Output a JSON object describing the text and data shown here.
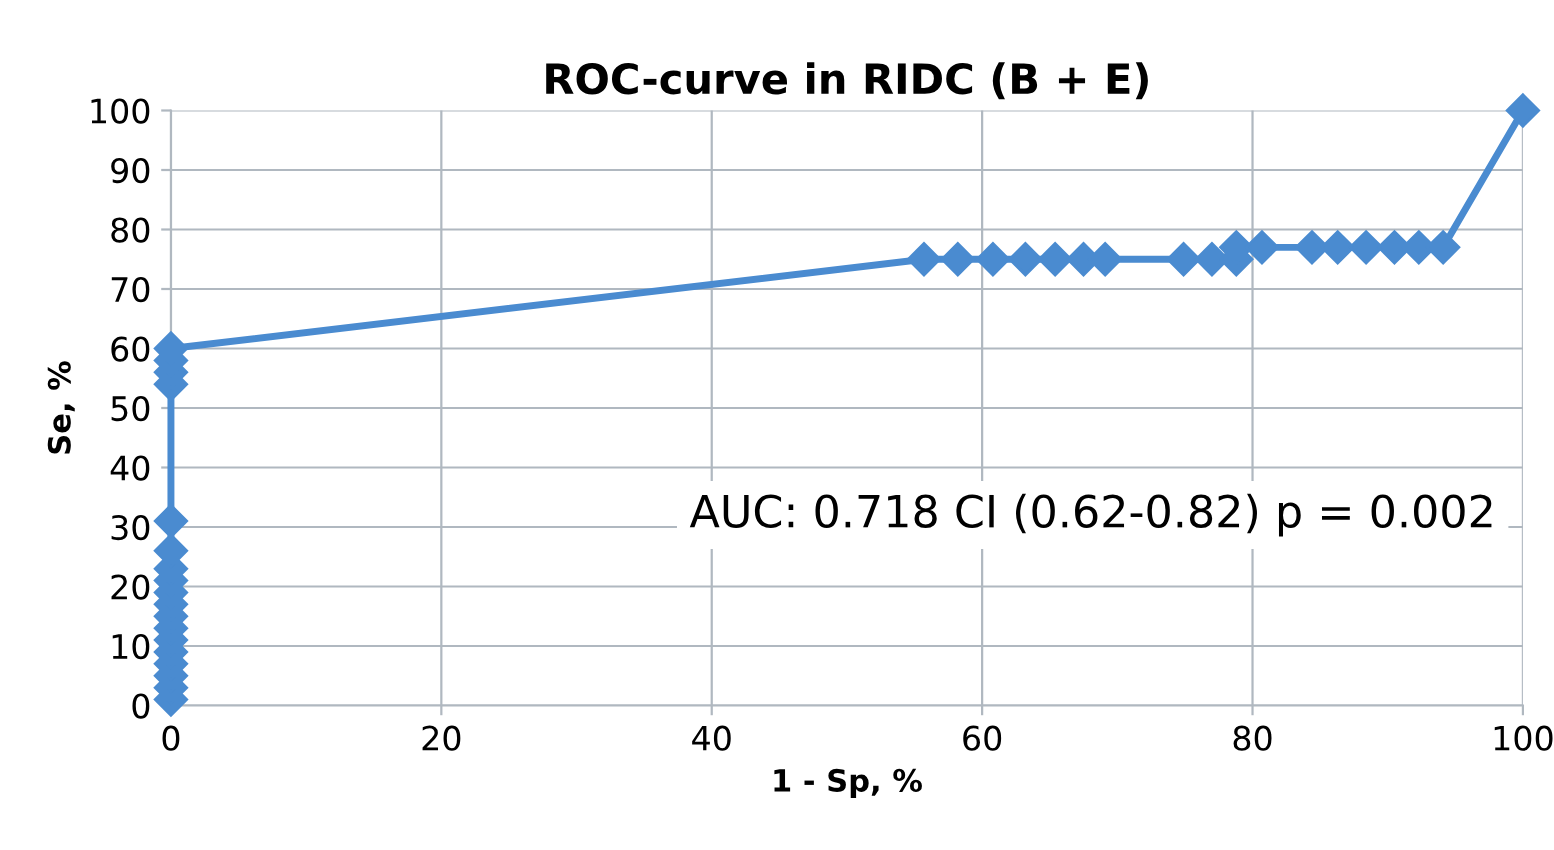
{
  "chart_data": {
    "type": "line",
    "title": "ROC-curve in RIDC (B + E)",
    "xlabel": "1 - Sp, %",
    "ylabel": "Se, %",
    "series": [
      {
        "color": "#4a8bd0",
        "x": [
          0,
          0,
          0,
          0,
          0,
          0,
          0,
          0,
          0,
          0,
          0,
          0,
          0,
          0,
          0,
          0,
          0,
          0,
          55.7,
          58.2,
          60.8,
          63.2,
          65.4,
          67.5,
          69.1,
          74.9,
          77,
          78.8,
          78.8,
          80.7,
          84.4,
          86.3,
          88.4,
          90.5,
          92.3,
          94.1,
          100
        ],
        "values": [
          1,
          3,
          5,
          7,
          9,
          11,
          13,
          15,
          17,
          19,
          21,
          23,
          26,
          31,
          54,
          56,
          58,
          60,
          75,
          75,
          75,
          75,
          75,
          75,
          75,
          75,
          75,
          75,
          77,
          77,
          77,
          77,
          77,
          77,
          77,
          77,
          100
        ]
      }
    ],
    "xlim": [
      0,
      100
    ],
    "ylim": [
      0,
      100
    ],
    "xticks": [
      0,
      20,
      40,
      60,
      80,
      100
    ],
    "yticks": [
      0,
      10,
      20,
      30,
      40,
      50,
      60,
      70,
      80,
      90,
      100
    ],
    "grid": true,
    "marker": "diamond",
    "line_style": "solid",
    "annotations": [
      "AUC: 0.718 CI (0.62-0.82) p = 0.002"
    ]
  }
}
